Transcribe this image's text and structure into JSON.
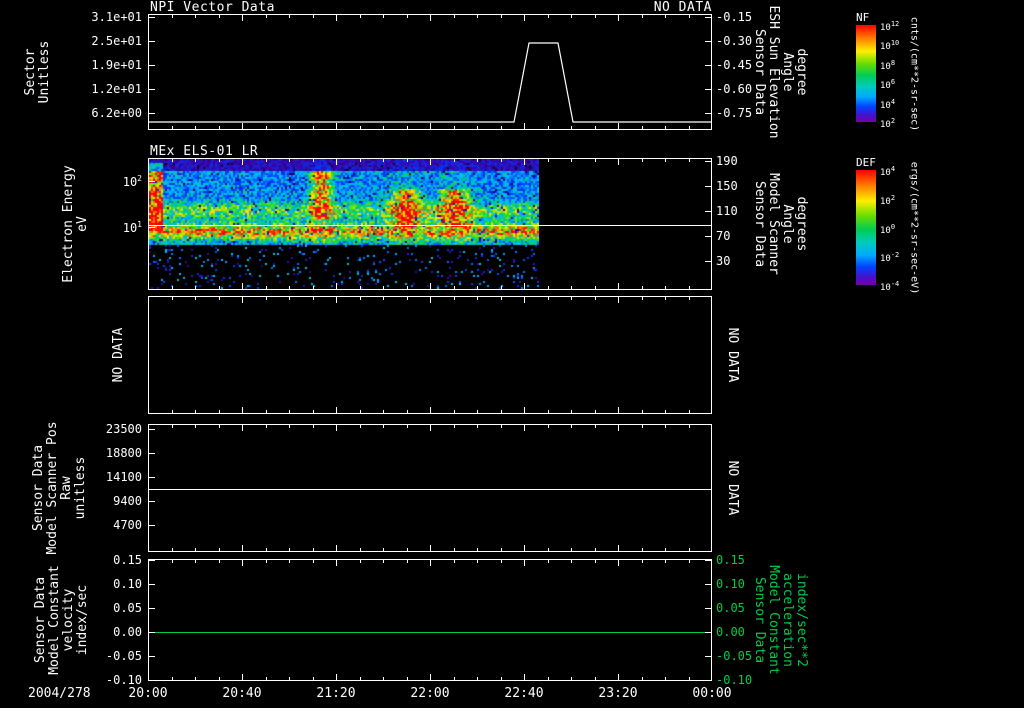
{
  "figure": {
    "background": "#000000",
    "foreground": "#ffffff",
    "accent_green": "#00cc44",
    "date_label": "2004/278",
    "x_tick_labels": [
      "20:00",
      "20:40",
      "21:20",
      "22:00",
      "22:40",
      "23:20",
      "00:00"
    ]
  },
  "panels": [
    {
      "title": "NPI Vector Data",
      "status_right": "NO DATA",
      "left_axis": {
        "label": "Sector\nUnitless",
        "ticks": [
          "3.1e+01",
          "2.5e+01",
          "1.9e+01",
          "1.2e+01",
          "6.2e+00"
        ]
      },
      "right_axis": {
        "label": "Sensor Data\nESH Sun Elevation\nAngle\ndegree",
        "ticks": [
          "-0.15",
          "-0.30",
          "-0.45",
          "-0.60",
          "-0.75"
        ]
      }
    },
    {
      "title": "MEx ELS-01 LR",
      "left_axis": {
        "label": "Electron Energy\neV",
        "ticks": [
          "10^2",
          "10^1"
        ]
      },
      "right_axis": {
        "label": "Sensor Data\nModel Scanner\nAngle\ndegrees",
        "ticks": [
          "190",
          "150",
          "110",
          "70",
          "30"
        ]
      }
    },
    {
      "left_axis": {
        "label": "NO DATA",
        "ticks": []
      },
      "right_axis": {
        "label": "NO DATA",
        "ticks": []
      }
    },
    {
      "left_axis": {
        "label": "Sensor Data\nModel Scanner Pos\nRaw\nunitless",
        "ticks": [
          "23500",
          "18800",
          "14100",
          "9400",
          "4700"
        ]
      },
      "right_axis": {
        "label": "NO DATA",
        "ticks": []
      }
    },
    {
      "left_axis": {
        "label": "Sensor Data\nModel Constant\nvelocity\nindex/sec",
        "ticks": [
          "0.15",
          "0.10",
          "0.05",
          "0.00",
          "-0.05",
          "-0.10"
        ]
      },
      "right_axis": {
        "label": "Sensor Data\nModel Constant\nacceleration\nindex/sec**2",
        "ticks": [
          "0.15",
          "0.10",
          "0.05",
          "0.00",
          "-0.05",
          "-0.10"
        ],
        "color": "#00cc44"
      }
    }
  ],
  "colorbars": [
    {
      "title": "NF",
      "unit": "cnts/(cm**2-sr-sec)",
      "ticks": [
        "10^12",
        "10^10",
        "10^8",
        "10^6",
        "10^4",
        "10^2"
      ]
    },
    {
      "title": "DEF",
      "unit": "ergs/(cm**2-sr-sec-eV)",
      "ticks": [
        "10^4",
        "10^2",
        "10^0",
        "10^-2",
        "10^-4"
      ]
    }
  ],
  "chart_data": [
    {
      "type": "line",
      "title": "NPI Vector Data",
      "status": "NO DATA",
      "left_axis": {
        "label": "Sector (Unitless)",
        "tick_values": [
          31,
          25,
          19,
          12,
          6.2
        ]
      },
      "right_axis": {
        "label": "Sensor Data ESH Sun Elevation Angle (degree)",
        "tick_values": [
          -0.15,
          -0.3,
          -0.45,
          -0.6,
          -0.75
        ]
      },
      "series": [
        {
          "name": "ESH Sun Elevation Angle",
          "axis": "right",
          "color": "#ffffff",
          "x": [
            "20:00",
            "22:36",
            "22:42",
            "22:54",
            "23:01",
            "24:00"
          ],
          "y": [
            -0.78,
            -0.78,
            -0.31,
            -0.31,
            -0.78,
            -0.78
          ]
        }
      ]
    },
    {
      "type": "heatmap",
      "title": "MEx ELS-01 LR",
      "ylabel": "Electron Energy (eV)",
      "y_scale": "log",
      "y_tick_values": [
        100,
        10
      ],
      "x_extent": [
        "20:00",
        "22:50"
      ],
      "colorbar": "DEF, ergs/(cm**2-sr-sec-eV)",
      "description": "Electron energy-time spectrogram; bright yellow-green band near 10-15 eV, secondary band near 30-50 eV, intense red patches at 20:00, ~21:15 and 21:55-22:15; black (no data) after ~22:50; sparse noise dots below ~5 eV",
      "overlay": {
        "name": "Model Scanner Angle",
        "axis": "right",
        "color": "#ffffff",
        "constant_value_degrees": 90,
        "x_extent": [
          "20:00",
          "24:00"
        ]
      }
    },
    {
      "type": "line",
      "title": "",
      "status": "NO DATA",
      "series": []
    },
    {
      "type": "line",
      "left_axis": {
        "label": "Sensor Data Model Scanner Pos Raw (unitless)",
        "tick_values": [
          23500,
          18800,
          14100,
          9400,
          4700
        ]
      },
      "right_status": "NO DATA",
      "series": [
        {
          "name": "Model Scanner Pos Raw",
          "color": "#ffffff",
          "constant_value": 11600,
          "x_extent": [
            "20:00",
            "24:00"
          ]
        }
      ]
    },
    {
      "type": "line",
      "left_axis": {
        "label": "Sensor Data Model Constant velocity (index/sec)",
        "tick_values": [
          0.15,
          0.1,
          0.05,
          0.0,
          -0.05,
          -0.1
        ]
      },
      "right_axis": {
        "label": "Sensor Data Model Constant acceleration (index/sec**2)",
        "tick_values": [
          0.15,
          0.1,
          0.05,
          0.0,
          -0.05,
          -0.1
        ]
      },
      "series": [
        {
          "name": "Model Constant acceleration",
          "axis": "right",
          "color": "#00cc44",
          "constant_value": 0.0,
          "x_extent": [
            "20:00",
            "24:00"
          ]
        }
      ]
    }
  ]
}
